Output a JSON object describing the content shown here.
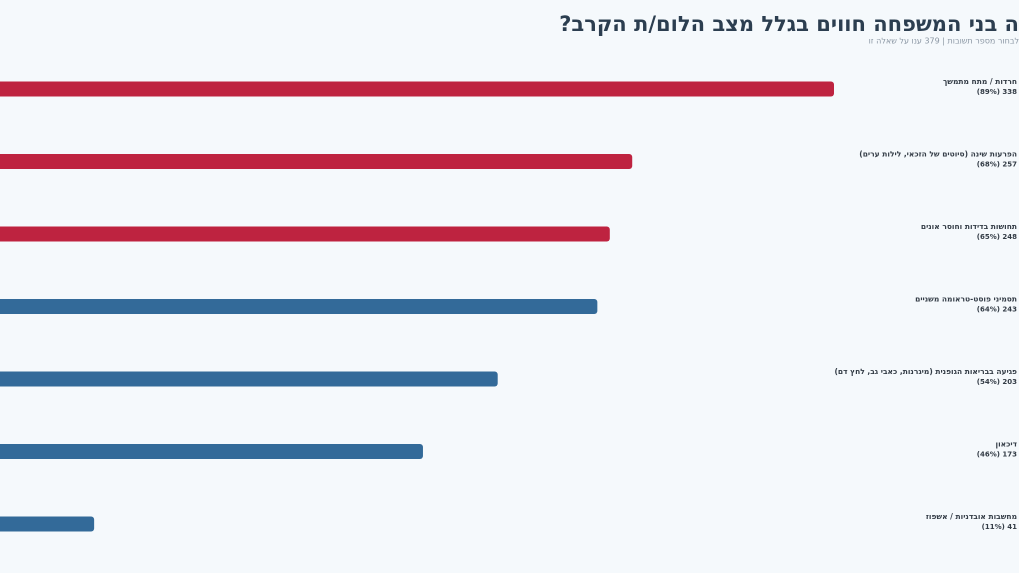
{
  "chart_data": {
    "type": "bar",
    "title": "ה בני המשפחה חווים בגלל מצב הלום/ת הקרב?",
    "subtitle": "לבחור מספר תשובות | 379 ענו על שאלה זו",
    "categories": [
      "חרדות / מתח מתמשך",
      "הפרעות שינה (סיוטים של הזכאי, לילות ערים)",
      "תחושות בדידות וחוסר אונים",
      "תסמיני פוסט-טראומה משניים",
      "פגיעה בבריאות הגופנית (מיגרנות, כאבי גב, לחץ דם)",
      "דיכאון",
      "מחשבות אובדניות / אשפוז"
    ],
    "values": [
      338,
      257,
      248,
      243,
      203,
      173,
      41
    ],
    "value_labels": [
      "338 (89%)",
      "257 (68%)",
      "248 (65%)",
      "243 (64%)",
      "203 (54%)",
      "173 (46%)",
      "41 (11%)"
    ],
    "colors": [
      "#be2340",
      "#be2340",
      "#be2340",
      "#336a99",
      "#336a99",
      "#336a99",
      "#336a99"
    ]
  }
}
